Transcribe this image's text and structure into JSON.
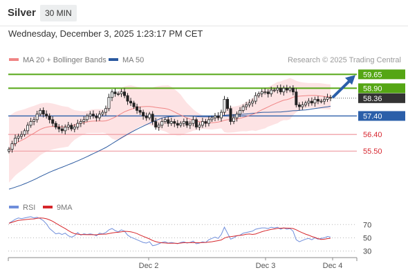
{
  "header": {
    "instrument": "Silver",
    "timeframe": "30 MIN",
    "datetime": "Wednesday, December 3, 2025 1:23:17 PM CET"
  },
  "colors": {
    "green": "#55a614",
    "blue": "#2b5fa9",
    "red": "#d7262f",
    "pink_line": "#f1a3a8",
    "band_fill": "#fde3e4",
    "ma20": "#f08585",
    "ma50": "#2b5aa0",
    "last_price_bg": "#333333",
    "rsi": "#6f8edb",
    "rsi_ma": "#d6262b",
    "grid": "#b5b5b5"
  },
  "chart_data": [
    {
      "type": "candlestick",
      "legend": [
        {
          "name": "MA 20 + Bollinger Bands",
          "color": "#f08585"
        },
        {
          "name": "MA 50",
          "color": "#2b5aa0"
        }
      ],
      "watermark": "Research © 2025 Trading Central",
      "ylim": [
        53.0,
        60.0
      ],
      "x_ticks": [
        "Dec 2",
        "Dec 3",
        "Dec 4"
      ],
      "last_price": 58.36,
      "levels": [
        {
          "value": 59.65,
          "label": "59.65",
          "type": "resistance"
        },
        {
          "value": 58.9,
          "label": "58.90",
          "type": "resistance"
        },
        {
          "value": 57.4,
          "label": "57.40",
          "type": "pivot"
        },
        {
          "value": 56.4,
          "label": "56.40",
          "type": "support"
        },
        {
          "value": 55.5,
          "label": "55.50",
          "type": "support"
        }
      ],
      "forecast_arrow": {
        "from": 58.36,
        "to": 59.65,
        "direction": "up"
      },
      "closes": [
        55.6,
        55.9,
        56.2,
        56.3,
        56.4,
        56.6,
        56.9,
        57.1,
        57.2,
        57.5,
        57.7,
        57.5,
        57.4,
        57.2,
        57.0,
        56.8,
        56.7,
        56.6,
        56.8,
        56.9,
        56.7,
        56.8,
        57.0,
        57.1,
        57.2,
        57.4,
        57.5,
        57.4,
        57.3,
        57.5,
        57.6,
        57.8,
        58.4,
        58.7,
        58.6,
        58.6,
        58.7,
        58.5,
        58.2,
        58.1,
        57.9,
        57.7,
        57.6,
        57.4,
        57.3,
        57.5,
        57.1,
        56.8,
        56.9,
        57.1,
        57.2,
        57.0,
        57.1,
        57.0,
        56.9,
        57.0,
        57.1,
        56.9,
        57.0,
        57.2,
        56.8,
        56.9,
        57.1,
        57.0,
        57.2,
        57.3,
        57.4,
        57.3,
        57.6,
        58.3,
        57.8,
        57.1,
        57.3,
        57.5,
        57.7,
        57.9,
        58.0,
        58.1,
        58.2,
        58.5,
        58.6,
        58.7,
        58.7,
        58.6,
        58.8,
        58.8,
        58.9,
        58.7,
        58.9,
        58.8,
        58.9,
        58.7,
        58.0,
        57.9,
        58.0,
        58.1,
        58.2,
        58.1,
        58.3,
        58.2,
        58.2,
        58.3,
        58.4,
        58.4
      ]
    },
    {
      "type": "line",
      "legend": [
        {
          "name": "RSI",
          "color": "#6f8edb"
        },
        {
          "name": "9MA",
          "color": "#d6262b"
        }
      ],
      "ylim": [
        20,
        85
      ],
      "y_ticks": [
        70,
        50,
        30
      ],
      "rsi": [
        72,
        75,
        78,
        80,
        79,
        80,
        81,
        82,
        80,
        81,
        79,
        76,
        71,
        64,
        60,
        56,
        57,
        55,
        57,
        53,
        51,
        53,
        58,
        54,
        56,
        55,
        56,
        55,
        53,
        57,
        56,
        58,
        62,
        64,
        61,
        59,
        62,
        60,
        54,
        51,
        49,
        47,
        45,
        43,
        42,
        44,
        38,
        39,
        41,
        43,
        44,
        42,
        43,
        42,
        41,
        43,
        44,
        42,
        43,
        45,
        41,
        42,
        44,
        43,
        47,
        49,
        51,
        49,
        55,
        66,
        57,
        48,
        50,
        53,
        54,
        57,
        58,
        59,
        60,
        63,
        64,
        65,
        65,
        64,
        66,
        65,
        66,
        63,
        65,
        63,
        64,
        60,
        47,
        44,
        46,
        48,
        49,
        47,
        50,
        48,
        49,
        50,
        52,
        51
      ]
    }
  ]
}
